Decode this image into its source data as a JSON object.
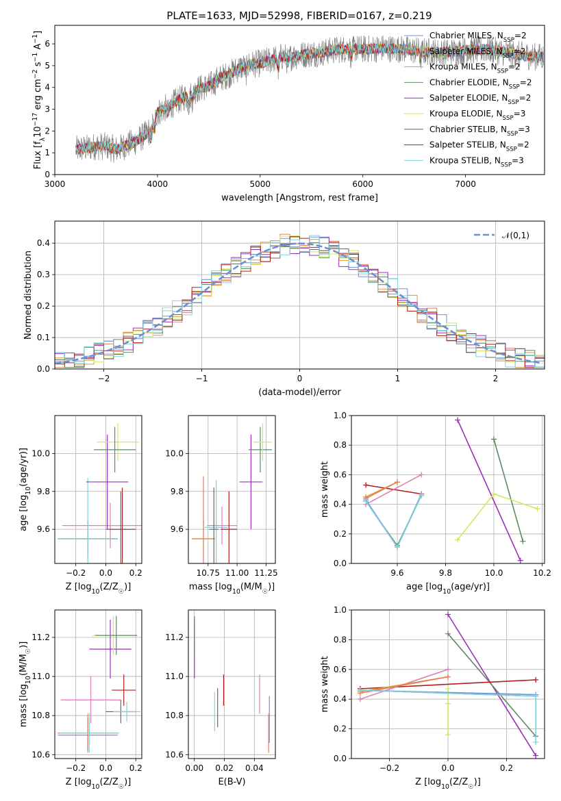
{
  "figure": {
    "title": "PLATE=1633, MJD=52998, FIBERID=0167, z=0.219"
  },
  "colors": {
    "chabrier_miles": "#6f93d8",
    "salpeter_miles": "#e87d55",
    "kroupa_miles": "#d99a2f",
    "chabrier_elodie": "#5e8a62",
    "salpeter_elodie": "#9a2fbd",
    "kroupa_elodie": "#d2e85a",
    "chabrier_stelib": "#666666",
    "salpeter_stelib": "#b31c1c",
    "kroupa_stelib": "#7fd3dd",
    "pink": "#e07fb5",
    "gauss": "#6a8fd6"
  },
  "chart_data": [
    {
      "id": "spectrum",
      "type": "line",
      "title": "PLATE=1633, MJD=52998, FIBERID=0167, z=0.219",
      "xlabel": "wavelength [Angstrom, rest frame]",
      "ylabel": "Flux [f$_\\lambda$10$^{-17}$ erg cm$^{-2}$ s$^{-1}$ A$^{-1}$]",
      "xlim": [
        3000,
        7770
      ],
      "ylim": [
        0,
        6.85
      ],
      "xticks": [
        "3000",
        "4000",
        "5000",
        "6000",
        "7000"
      ],
      "yticks": [
        "0",
        "1",
        "2",
        "3",
        "4",
        "5",
        "6"
      ],
      "grid": false,
      "legend": "upper right",
      "continuum": {
        "x": [
          3200,
          3300,
          3400,
          3500,
          3600,
          3700,
          3800,
          3900,
          4000,
          4100,
          4200,
          4300,
          4400,
          4500,
          4600,
          4700,
          4800,
          4900,
          5000,
          5100,
          5200,
          5300,
          5400,
          5500,
          5600,
          5700,
          5800,
          5900,
          6000,
          6200,
          6400,
          6600,
          6800,
          7000,
          7200,
          7400,
          7500,
          7700
        ],
        "y": [
          1.15,
          1.2,
          1.3,
          1.3,
          1.15,
          1.35,
          1.55,
          1.9,
          2.85,
          3.1,
          3.4,
          3.65,
          3.95,
          4.05,
          4.4,
          4.6,
          4.9,
          5.05,
          5.1,
          5.25,
          5.4,
          5.4,
          5.5,
          5.55,
          5.6,
          5.7,
          5.75,
          5.8,
          5.75,
          5.8,
          5.75,
          5.65,
          5.6,
          5.7,
          5.75,
          5.6,
          5.5,
          5.4
        ]
      },
      "series": [
        {
          "name": "Chabrier MILES, N$_{SSP}$=2",
          "color": "chabrier_miles"
        },
        {
          "name": "Salpeter MILES, N$_{SSP}$=2",
          "color": "salpeter_miles"
        },
        {
          "name": "Kroupa MILES, N$_{SSP}$=2",
          "color": "kroupa_miles"
        },
        {
          "name": "Chabrier ELODIE, N$_{SSP}$=2",
          "color": "chabrier_elodie"
        },
        {
          "name": "Salpeter ELODIE, N$_{SSP}$=2",
          "color": "salpeter_elodie"
        },
        {
          "name": "Kroupa ELODIE, N$_{SSP}$=3",
          "color": "kroupa_elodie"
        },
        {
          "name": "Chabrier STELIB, N$_{SSP}$=3",
          "color": "chabrier_stelib"
        },
        {
          "name": "Salpeter STELIB, N$_{SSP}$=2",
          "color": "salpeter_stelib"
        },
        {
          "name": "Kroupa STELIB, N$_{SSP}$=3",
          "color": "kroupa_stelib"
        }
      ]
    },
    {
      "id": "residuals",
      "type": "line",
      "xlabel": "(data-model)/error",
      "ylabel": "Normed distribution",
      "xlim": [
        -2.5,
        2.5
      ],
      "ylim": [
        0,
        0.47
      ],
      "xticks": [
        "−2",
        "−1",
        "0",
        "1",
        "2"
      ],
      "yticks": [
        "0.0",
        "0.1",
        "0.2",
        "0.3",
        "0.4"
      ],
      "grid": true,
      "legend": "upper right",
      "gaussian_label": "$\\mathcal{N}(0,1)$",
      "histogram_bin_width": 0.1,
      "series_colors": [
        "chabrier_miles",
        "salpeter_miles",
        "kroupa_miles",
        "chabrier_elodie",
        "salpeter_elodie",
        "kroupa_elodie",
        "chabrier_stelib",
        "salpeter_stelib",
        "kroupa_stelib"
      ]
    },
    {
      "id": "age-vs-Z",
      "type": "scatter",
      "xlabel": "Z [log$_{10}$(Z/Z$_\\odot$)]",
      "ylabel": "age  [log$_{10}$(age/yr)]",
      "xlim": [
        -0.34,
        0.24
      ],
      "ylim": [
        9.42,
        10.2
      ],
      "xticks": [
        "−0.2",
        "0.0",
        "0.2"
      ],
      "yticks": [
        "9.6",
        "9.8",
        "10.0"
      ],
      "grid": true,
      "crosses": [
        {
          "color": "pink",
          "x": 0.03,
          "xerr": 0.32,
          "y": 9.62,
          "yerr": 0.12
        },
        {
          "color": "kroupa_miles",
          "x": -0.12,
          "xerr": 0.2,
          "y": 9.55,
          "yerr": 0.08
        },
        {
          "color": "chabrier_miles",
          "x": -0.12,
          "xerr": 0.2,
          "y": 9.55,
          "yerr": 0.1
        },
        {
          "color": "salpeter_miles",
          "x": -0.12,
          "xerr": 0.2,
          "y": 9.55,
          "yerr": 0.1
        },
        {
          "color": "kroupa_stelib",
          "x": -0.12,
          "xerr": 0.2,
          "y": 9.55,
          "yerr": 0.32
        },
        {
          "color": "salpeter_elodie",
          "x": 0.01,
          "xerr": 0.14,
          "y": 9.85,
          "yerr": 0.25
        },
        {
          "color": "kroupa_elodie",
          "x": 0.08,
          "xerr": 0.14,
          "y": 10.06,
          "yerr": 0.1
        },
        {
          "color": "chabrier_elodie",
          "x": 0.06,
          "xerr": 0.14,
          "y": 10.02,
          "yerr": 0.12
        },
        {
          "color": "salpeter_stelib",
          "x": 0.11,
          "xerr": 0.09,
          "y": 9.6,
          "yerr": 0.22
        },
        {
          "color": "chabrier_stelib",
          "x": 0.1,
          "xerr": 0.1,
          "y": 9.6,
          "yerr": 0.2
        }
      ]
    },
    {
      "id": "age-vs-mass",
      "type": "scatter",
      "xlabel": "mass [log$_{10}$(M/M$_\\odot$)]",
      "ylabel": "",
      "xlim": [
        10.58,
        11.33
      ],
      "ylim": [
        9.42,
        10.2
      ],
      "xticks": [
        "10.75",
        "11.00",
        "11.25"
      ],
      "yticks": [
        "9.6",
        "9.8",
        "10.0"
      ],
      "grid": true,
      "crosses": [
        {
          "color": "kroupa_miles",
          "x": 10.71,
          "xerr": 0.1,
          "y": 9.55,
          "yerr": 0.1
        },
        {
          "color": "salpeter_miles",
          "x": 10.71,
          "xerr": 0.1,
          "y": 9.55,
          "yerr": 0.33
        },
        {
          "color": "kroupa_stelib",
          "x": 10.82,
          "xerr": 0.1,
          "y": 9.61,
          "yerr": 0.25
        },
        {
          "color": "pink",
          "x": 10.87,
          "xerr": 0.13,
          "y": 9.62,
          "yerr": 0.1
        },
        {
          "color": "chabrier_stelib",
          "x": 10.8,
          "xerr": 0.04,
          "y": 9.6,
          "yerr": 0.22
        },
        {
          "color": "salpeter_stelib",
          "x": 10.93,
          "xerr": 0.07,
          "y": 9.6,
          "yerr": 0.2
        },
        {
          "color": "salpeter_elodie",
          "x": 11.12,
          "xerr": 0.1,
          "y": 9.85,
          "yerr": 0.25
        },
        {
          "color": "chabrier_elodie",
          "x": 11.2,
          "xerr": 0.1,
          "y": 10.02,
          "yerr": 0.12
        },
        {
          "color": "kroupa_elodie",
          "x": 11.22,
          "xerr": 0.08,
          "y": 10.06,
          "yerr": 0.1
        }
      ]
    },
    {
      "id": "massweight-vs-age",
      "type": "line",
      "xlabel": "age  [log$_{10}$(age/yr)]",
      "ylabel": "mass weight",
      "xlim": [
        9.41,
        10.21
      ],
      "ylim": [
        0,
        1.0
      ],
      "xticks": [
        "9.6",
        "9.8",
        "10.0",
        "10.2"
      ],
      "yticks": [
        "0.0",
        "0.2",
        "0.4",
        "0.6",
        "0.8",
        "1.0"
      ],
      "grid": true,
      "series": [
        {
          "color": "salpeter_elodie",
          "x": [
            9.85,
            10.11
          ],
          "y": [
            0.97,
            0.02
          ]
        },
        {
          "color": "chabrier_elodie",
          "x": [
            10.0,
            10.12
          ],
          "y": [
            0.84,
            0.15
          ]
        },
        {
          "color": "kroupa_elodie",
          "x": [
            9.85,
            10.0,
            10.18
          ],
          "y": [
            0.16,
            0.47,
            0.37
          ]
        },
        {
          "color": "salpeter_stelib",
          "x": [
            9.47,
            9.7
          ],
          "y": [
            0.53,
            0.47
          ]
        },
        {
          "color": "pink",
          "x": [
            9.47,
            9.7
          ],
          "y": [
            0.4,
            0.6
          ]
        },
        {
          "color": "kroupa_miles",
          "x": [
            9.47,
            9.6
          ],
          "y": [
            0.45,
            0.55
          ]
        },
        {
          "color": "salpeter_miles",
          "x": [
            9.47,
            9.6
          ],
          "y": [
            0.44,
            0.55
          ]
        },
        {
          "color": "chabrier_elodie",
          "x": [
            9.47,
            9.6,
            9.7
          ],
          "y": [
            0.42,
            0.12,
            0.46
          ]
        },
        {
          "color": "chabrier_miles",
          "x": [
            9.47,
            9.6,
            9.7
          ],
          "y": [
            0.43,
            0.11,
            0.47
          ]
        },
        {
          "color": "kroupa_stelib",
          "x": [
            9.47,
            9.6,
            9.7
          ],
          "y": [
            0.42,
            0.11,
            0.46
          ]
        }
      ]
    },
    {
      "id": "mass-vs-Z",
      "type": "scatter",
      "xlabel": "Z [log$_{10}$(Z/Z$_\\odot$)]",
      "ylabel": "mass [log$_{10}$(M/M$_\\odot$)]",
      "xlim": [
        -0.34,
        0.24
      ],
      "ylim": [
        10.58,
        11.34
      ],
      "xticks": [
        "−0.2",
        "0.0",
        "0.2"
      ],
      "yticks": [
        "10.6",
        "10.8",
        "11.0",
        "11.2"
      ],
      "grid": true,
      "crosses": [
        {
          "color": "kroupa_miles",
          "x": -0.12,
          "xerr": 0.2,
          "y": 10.71,
          "yerr": 0.1
        },
        {
          "color": "chabrier_miles",
          "x": -0.12,
          "xerr": 0.2,
          "y": 10.7,
          "yerr": 0.08
        },
        {
          "color": "salpeter_miles",
          "x": -0.12,
          "xerr": 0.2,
          "y": 10.71,
          "yerr": 0.08
        },
        {
          "color": "kroupa_stelib",
          "x": -0.11,
          "xerr": 0.2,
          "y": 10.71,
          "yerr": 0.1
        },
        {
          "color": "pink",
          "x": -0.1,
          "xerr": 0.2,
          "y": 10.88,
          "yerr": 0.12
        },
        {
          "color": "salpeter_elodie",
          "x": 0.03,
          "xerr": 0.14,
          "y": 11.14,
          "yerr": 0.15
        },
        {
          "color": "kroupa_elodie",
          "x": 0.05,
          "xerr": 0.14,
          "y": 11.21,
          "yerr": 0.1
        },
        {
          "color": "chabrier_elodie",
          "x": 0.07,
          "xerr": 0.14,
          "y": 11.21,
          "yerr": 0.1
        },
        {
          "color": "salpeter_stelib",
          "x": 0.12,
          "xerr": 0.08,
          "y": 10.93,
          "yerr": 0.08
        },
        {
          "color": "chabrier_stelib",
          "x": 0.1,
          "xerr": 0.1,
          "y": 10.82,
          "yerr": 0.06
        },
        {
          "color": "kroupa_stelib",
          "x": 0.14,
          "xerr": 0.09,
          "y": 10.82,
          "yerr": 0.05
        }
      ]
    },
    {
      "id": "mass-vs-ebv",
      "type": "scatter",
      "xlabel": "E(B-V)",
      "ylabel": "",
      "xlim": [
        -0.004,
        0.054
      ],
      "ylim": [
        10.58,
        11.34
      ],
      "xticks": [
        "0.00",
        "0.02",
        "0.04"
      ],
      "yticks": [
        "10.6",
        "10.8",
        "11.0",
        "11.2"
      ],
      "grid": true,
      "crosses": [
        {
          "color": "kroupa_elodie",
          "x": 0.0,
          "xerr": 0.0,
          "y": 11.2,
          "yerr": 0.1
        },
        {
          "color": "salpeter_elodie",
          "x": 0.0,
          "xerr": 0.0,
          "y": 11.14,
          "yerr": 0.15
        },
        {
          "color": "chabrier_elodie",
          "x": 0.0,
          "xerr": 0.0,
          "y": 11.21,
          "yerr": 0.1
        },
        {
          "color": "kroupa_stelib",
          "x": 0.0135,
          "xerr": 0.0,
          "y": 10.82,
          "yerr": 0.1
        },
        {
          "color": "chabrier_stelib",
          "x": 0.0155,
          "xerr": 0.0,
          "y": 10.84,
          "yerr": 0.1
        },
        {
          "color": "salpeter_stelib",
          "x": 0.0195,
          "xerr": 0.0,
          "y": 10.93,
          "yerr": 0.08
        },
        {
          "color": "pink",
          "x": 0.0435,
          "xerr": 0.0,
          "y": 10.91,
          "yerr": 0.1
        },
        {
          "color": "salpeter_miles",
          "x": 0.0495,
          "xerr": 0.0,
          "y": 10.71,
          "yerr": 0.1
        },
        {
          "color": "chabrier_miles",
          "x": 0.05,
          "xerr": 0.0,
          "y": 10.78,
          "yerr": 0.12
        }
      ]
    },
    {
      "id": "massweight-vs-Z",
      "type": "line",
      "xlabel": "Z [log$_{10}$(Z/Z$_\\odot$)]",
      "ylabel": "mass weight",
      "xlim": [
        -0.33,
        0.33
      ],
      "ylim": [
        0,
        1.0
      ],
      "xticks": [
        "−0.2",
        "0.0",
        "0.2"
      ],
      "yticks": [
        "0.0",
        "0.2",
        "0.4",
        "0.6",
        "0.8",
        "1.0"
      ],
      "grid": true,
      "series": [
        {
          "color": "salpeter_elodie",
          "x": [
            0.0,
            0.3
          ],
          "y": [
            0.97,
            0.02
          ]
        },
        {
          "color": "chabrier_elodie",
          "x": [
            0.0,
            0.3
          ],
          "y": [
            0.84,
            0.15
          ]
        },
        {
          "color": "kroupa_elodie",
          "x": [
            0.0,
            0.0,
            0.0
          ],
          "y": [
            0.47,
            0.37,
            0.16
          ]
        },
        {
          "color": "salpeter_stelib",
          "x": [
            -0.3,
            0.3
          ],
          "y": [
            0.47,
            0.53
          ]
        },
        {
          "color": "pink",
          "x": [
            -0.3,
            0.0
          ],
          "y": [
            0.4,
            0.6
          ]
        },
        {
          "color": "kroupa_miles",
          "x": [
            -0.3,
            0.0
          ],
          "y": [
            0.45,
            0.55
          ]
        },
        {
          "color": "salpeter_miles",
          "x": [
            -0.3,
            0.0
          ],
          "y": [
            0.44,
            0.55
          ]
        },
        {
          "color": "chabrier_stelib",
          "x": [
            -0.3,
            0.3
          ],
          "y": [
            0.46,
            0.42
          ]
        },
        {
          "color": "chabrier_miles",
          "x": [
            -0.3,
            0.3
          ],
          "y": [
            0.46,
            0.43
          ]
        },
        {
          "color": "kroupa_stelib",
          "x": [
            -0.3,
            0.3,
            0.3
          ],
          "y": [
            0.46,
            0.42,
            0.11
          ]
        }
      ]
    }
  ]
}
